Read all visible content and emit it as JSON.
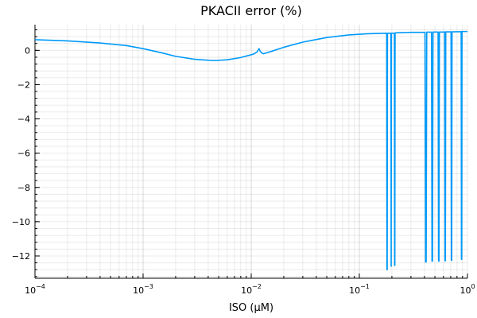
{
  "chart_data": {
    "type": "line",
    "title": "PKACII error (%)",
    "xlabel": "ISO (μM)",
    "ylabel": "",
    "x_scale": "log10",
    "xlim": [
      0.0001,
      1
    ],
    "ylim": [
      -13.3,
      1.5
    ],
    "grid": true,
    "legend": "none",
    "x_ticks": [
      {
        "value": 0.0001,
        "base": "10",
        "exp": "−4"
      },
      {
        "value": 0.001,
        "base": "10",
        "exp": "−3"
      },
      {
        "value": 0.01,
        "base": "10",
        "exp": "−2"
      },
      {
        "value": 0.1,
        "base": "10",
        "exp": "−1"
      },
      {
        "value": 1,
        "base": "10",
        "exp": "0"
      }
    ],
    "y_ticks": [
      {
        "value": 0,
        "label": "0"
      },
      {
        "value": -2,
        "label": "−2"
      },
      {
        "value": -4,
        "label": "−4"
      },
      {
        "value": -6,
        "label": "−6"
      },
      {
        "value": -8,
        "label": "−8"
      },
      {
        "value": -10,
        "label": "−10"
      },
      {
        "value": -12,
        "label": "−12"
      }
    ],
    "series": [
      {
        "color": "#009af9",
        "x": [
          0.0001,
          0.0002,
          0.0004,
          0.0007,
          0.001,
          0.0015,
          0.002,
          0.003,
          0.0045,
          0.006,
          0.008,
          0.0105,
          0.0113,
          0.0118,
          0.0121,
          0.0125,
          0.013,
          0.015,
          0.02,
          0.03,
          0.05,
          0.08,
          0.12,
          0.178,
          0.179,
          0.18,
          0.181,
          0.182,
          0.195,
          0.196,
          0.197,
          0.198,
          0.21,
          0.211,
          0.212,
          0.213,
          0.214,
          0.3,
          0.4,
          0.405,
          0.41,
          0.415,
          0.42,
          0.46,
          0.465,
          0.47,
          0.475,
          0.48,
          0.53,
          0.535,
          0.54,
          0.545,
          0.55,
          0.61,
          0.615,
          0.62,
          0.625,
          0.63,
          0.7,
          0.705,
          0.71,
          0.715,
          0.72,
          0.87,
          0.875,
          0.88,
          0.885,
          0.89,
          0.95,
          1
        ],
        "y": [
          0.62,
          0.55,
          0.43,
          0.28,
          0.1,
          -0.15,
          -0.35,
          -0.52,
          -0.6,
          -0.55,
          -0.42,
          -0.22,
          -0.1,
          0.1,
          -0.05,
          -0.15,
          -0.2,
          -0.08,
          0.18,
          0.48,
          0.75,
          0.9,
          0.97,
          1.0,
          1.0,
          -12.8,
          -12.8,
          1.0,
          1.0,
          1.0,
          -12.6,
          1.0,
          1.0,
          1.0,
          -12.55,
          -12.55,
          1.02,
          1.05,
          1.05,
          1.05,
          -12.35,
          -12.35,
          1.06,
          1.06,
          1.06,
          -12.3,
          -12.3,
          1.07,
          1.07,
          1.07,
          -12.3,
          -12.3,
          1.07,
          1.07,
          1.08,
          -12.28,
          -12.28,
          1.08,
          1.08,
          1.08,
          -12.25,
          -12.25,
          1.08,
          1.09,
          1.1,
          -12.2,
          -12.2,
          1.1,
          1.1,
          1.1
        ]
      }
    ]
  }
}
